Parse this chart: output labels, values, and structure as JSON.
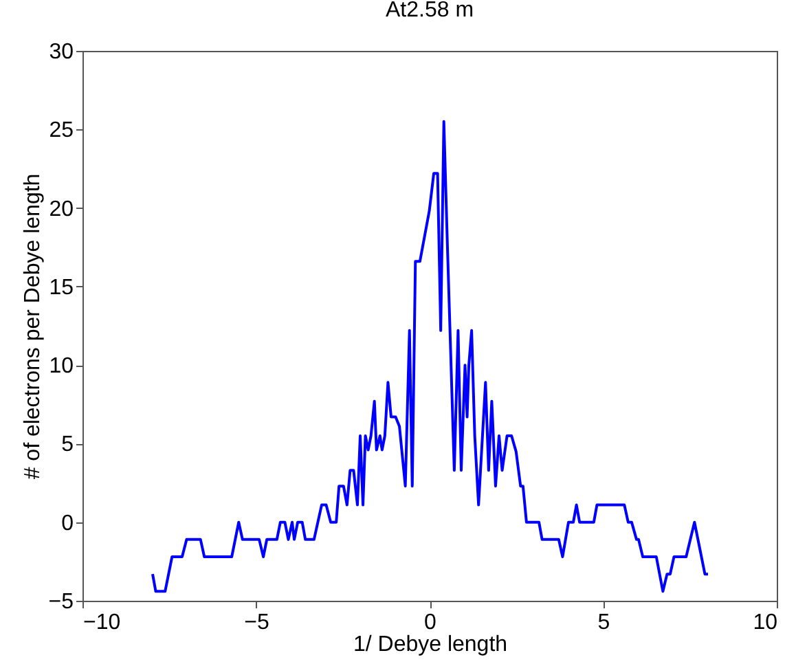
{
  "chart_data": {
    "type": "line",
    "title": "At2.58 m",
    "xlabel": "1/ Debye length",
    "ylabel": "# of electrons per Debye length",
    "xlim": [
      -10,
      10
    ],
    "xticks": [
      -10,
      -5,
      0,
      5,
      10
    ],
    "ylim": [
      -5,
      30
    ],
    "yticks": [
      -5,
      0,
      5,
      10,
      15,
      20,
      25,
      30
    ],
    "grid": false,
    "marker": "none",
    "line_style": "solid",
    "series": [
      {
        "color": "#0000ff",
        "x": [
          -7.98,
          -7.89,
          -7.62,
          -7.42,
          -7.13,
          -7.0,
          -6.6,
          -6.49,
          -5.7,
          -5.5,
          -5.39,
          -4.91,
          -4.79,
          -4.69,
          -4.4,
          -4.3,
          -4.17,
          -4.07,
          -3.96,
          -3.9,
          -3.8,
          -3.67,
          -3.58,
          -3.33,
          -3.11,
          -2.98,
          -2.85,
          -2.69,
          -2.61,
          -2.48,
          -2.38,
          -2.29,
          -2.19,
          -2.08,
          -2.0,
          -1.92,
          -1.85,
          -1.77,
          -1.69,
          -1.59,
          -1.53,
          -1.43,
          -1.37,
          -1.29,
          -1.2,
          -1.11,
          -0.98,
          -0.87,
          -0.7,
          -0.58,
          -0.5,
          -0.41,
          -0.28,
          -0.01,
          0.12,
          0.23,
          0.32,
          0.41,
          0.51,
          0.71,
          0.82,
          0.91,
          1.02,
          1.08,
          1.13,
          1.21,
          1.3,
          1.41,
          1.61,
          1.7,
          1.79,
          1.9,
          2.0,
          2.09,
          2.23,
          2.36,
          2.49,
          2.62,
          2.69,
          2.79,
          3.15,
          3.24,
          3.72,
          3.83,
          4.0,
          4.14,
          4.23,
          4.32,
          4.73,
          4.82,
          5.61,
          5.72,
          5.82,
          5.96,
          6.02,
          6.14,
          6.53,
          6.72,
          6.84,
          6.93,
          7.04,
          7.39,
          7.63,
          7.93,
          8.02
        ],
        "values": [
          -3.3,
          -4.4,
          -4.4,
          -2.2,
          -2.2,
          -1.1,
          -1.1,
          -2.2,
          -2.2,
          0,
          -1.1,
          -1.1,
          -2.2,
          -1.1,
          -1.1,
          0,
          0,
          -1.1,
          0,
          -1.1,
          0,
          0,
          -1.1,
          -1.1,
          1.1,
          1.1,
          0,
          0,
          2.3,
          2.3,
          1.1,
          3.3,
          3.3,
          1.1,
          5.5,
          1.1,
          5.5,
          4.6,
          5.5,
          7.7,
          4.6,
          5.5,
          4.6,
          5.5,
          8.9,
          6.7,
          6.7,
          6.1,
          2.3,
          12.2,
          2.3,
          16.6,
          16.6,
          19.8,
          22.2,
          22.2,
          12.2,
          25.5,
          17.8,
          3.3,
          12.2,
          3.3,
          10,
          6.7,
          10,
          12.2,
          5.5,
          1.1,
          8.9,
          3.3,
          7.7,
          2.3,
          5.5,
          3.3,
          5.5,
          5.5,
          4.5,
          2.3,
          2.3,
          0,
          0,
          -1.1,
          -1.1,
          -2.2,
          0,
          0,
          1.1,
          0,
          0,
          1.1,
          1.1,
          0,
          0,
          -1.1,
          -1.1,
          -2.2,
          -2.2,
          -4.4,
          -3.3,
          -3.3,
          -2.2,
          -2.2,
          0,
          -3.3,
          -3.3
        ]
      }
    ]
  }
}
